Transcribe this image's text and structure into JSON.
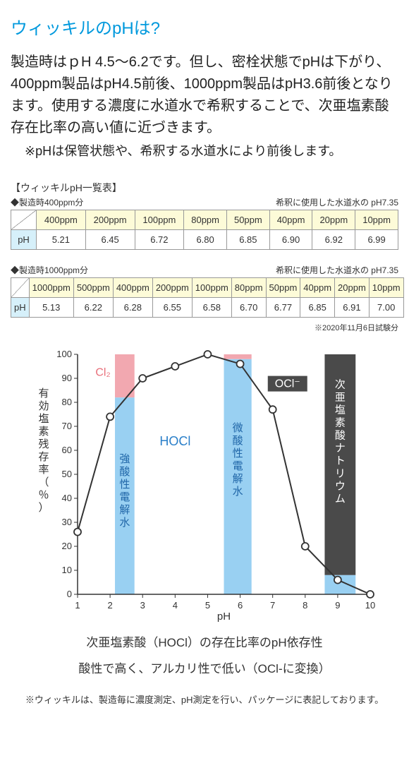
{
  "title": "ウィッキルのpHは?",
  "body": "製造時はｐH 4.5〜6.2です。但し、密栓状態でpHは下がり、400ppm製品はpH4.5前後、1000ppm製品はpH3.6前後となります。使用する濃度に水道水で希釈することで、次亜塩素酸存在比率の高い値に近づきます。",
  "note": "※pHは保管状態や、希釈する水道水により前後します。",
  "tables_heading": "【ウィッキルpH一覧表】",
  "dilution_note": "希釈に使用した水道水の pH7.35",
  "table400": {
    "label": "◆製造時400ppm分",
    "row_label": "pH",
    "headers": [
      "400ppm",
      "200ppm",
      "100ppm",
      "80ppm",
      "50ppm",
      "40ppm",
      "20ppm",
      "10ppm"
    ],
    "values": [
      "5.21",
      "6.45",
      "6.72",
      "6.80",
      "6.85",
      "6.90",
      "6.92",
      "6.99"
    ]
  },
  "table1000": {
    "label": "◆製造時1000ppm分",
    "row_label": "pH",
    "headers": [
      "1000ppm",
      "500ppm",
      "400ppm",
      "200ppm",
      "100ppm",
      "80ppm",
      "50ppm",
      "40ppm",
      "20ppm",
      "10ppm"
    ],
    "values": [
      "5.13",
      "6.22",
      "6.28",
      "6.55",
      "6.58",
      "6.70",
      "6.77",
      "6.85",
      "6.91",
      "7.00"
    ]
  },
  "table_footnote": "※2020年11月6日試験分",
  "chart": {
    "type": "line+bar",
    "y_label": "有効塩素残存率（％）",
    "x_label": "pH",
    "x_ticks": [
      1,
      2,
      3,
      4,
      5,
      6,
      7,
      8,
      9,
      10
    ],
    "y_ticks": [
      0,
      10,
      20,
      30,
      40,
      50,
      60,
      70,
      80,
      90,
      100
    ],
    "line_points": [
      {
        "x": 1,
        "y": 26
      },
      {
        "x": 2,
        "y": 74
      },
      {
        "x": 3,
        "y": 90
      },
      {
        "x": 4,
        "y": 95
      },
      {
        "x": 5,
        "y": 100
      },
      {
        "x": 6,
        "y": 96
      },
      {
        "x": 7,
        "y": 77
      },
      {
        "x": 8,
        "y": 20
      },
      {
        "x": 9,
        "y": 6
      },
      {
        "x": 10,
        "y": 0
      }
    ],
    "bars": [
      {
        "x0": 2.15,
        "x1": 2.75,
        "blue_top": 82,
        "pink_top": 100,
        "label": "強酸性電解水"
      },
      {
        "x0": 5.5,
        "x1": 6.35,
        "blue_top": 98,
        "pink_top": 100,
        "label": "微酸性電解水"
      },
      {
        "x0": 8.6,
        "x1": 9.55,
        "blue_top": 8,
        "gray_top": 100,
        "label": "次亜塩素酸ナトリウム"
      }
    ],
    "annotations": {
      "cl2": {
        "text": "Cl₂",
        "color": "#e86f7a"
      },
      "hocl": {
        "text": "HOCl",
        "color": "#2a7fc9"
      },
      "ocl": {
        "text": "OCl⁻",
        "bg": "#4a4a4a",
        "color": "#ffffff"
      }
    },
    "colors": {
      "blue_bar": "#99d0f2",
      "pink_bar": "#f2a8b0",
      "gray_bar": "#4a4a4a",
      "line": "#333333",
      "marker_fill": "#ffffff",
      "grid": "#888888",
      "axis": "#333333"
    },
    "font_sizes": {
      "axis_label": 15,
      "tick": 13,
      "bar_label": 15,
      "annot": 16
    }
  },
  "chart_caption_1": "次亜塩素酸（HOCl）の存在比率のpH依存性",
  "chart_caption_2": "酸性で高く、アルカリ性で低い（OCl-に変換）",
  "footnote": "※ウィッキルは、製造毎に濃度測定、pH測定を行い、パッケージに表記しております。"
}
